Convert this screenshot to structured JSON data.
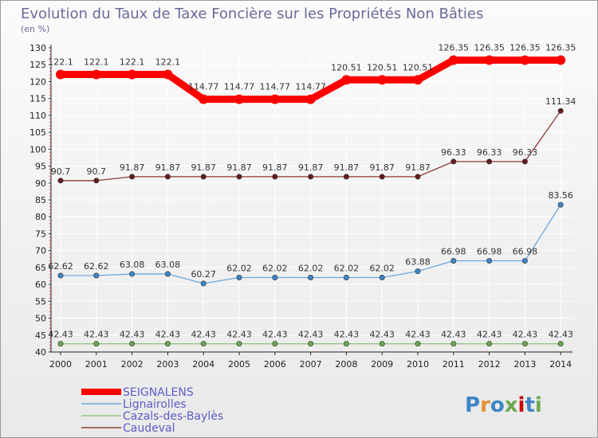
{
  "chart_data": {
    "type": "line",
    "title": "Evolution du Taux de Taxe Foncière sur les Propriétés Non Bâties",
    "unit_label": "(en %)",
    "xlabel": "",
    "ylabel": "",
    "categories": [
      "2000",
      "2001",
      "2002",
      "2003",
      "2004",
      "2005",
      "2006",
      "2007",
      "2008",
      "2009",
      "2010",
      "2011",
      "2012",
      "2013",
      "2014"
    ],
    "ylim": [
      40,
      130
    ],
    "yticks": [
      40,
      45,
      50,
      55,
      60,
      65,
      70,
      75,
      80,
      85,
      90,
      95,
      100,
      105,
      110,
      115,
      120,
      125,
      130
    ],
    "grid": true,
    "series": [
      {
        "name": "SEIGNALENS",
        "color": "#ff0000",
        "marker_color": "#ff0000",
        "values": [
          122.1,
          122.1,
          122.1,
          122.1,
          114.77,
          114.77,
          114.77,
          114.77,
          120.51,
          120.51,
          120.51,
          126.35,
          126.35,
          126.35,
          126.35
        ],
        "labels": [
          "122.1",
          "122.1",
          "122.1",
          "122.1",
          "114.77",
          "114.77",
          "114.77",
          "114.77",
          "120.51",
          "120.51",
          "120.51",
          "126.35",
          "126.35",
          "126.35",
          "126.35"
        ]
      },
      {
        "name": "Lignairolles",
        "color": "#6fa8dc",
        "marker_color": "#3d85c6",
        "values": [
          62.62,
          62.62,
          63.08,
          63.08,
          60.27,
          62.02,
          62.02,
          62.02,
          62.02,
          62.02,
          63.88,
          66.98,
          66.98,
          66.98,
          83.56
        ],
        "labels": [
          "62.62",
          "62.62",
          "63.08",
          "63.08",
          "60.27",
          "62.02",
          "62.02",
          "62.02",
          "62.02",
          "62.02",
          "63.88",
          "66.98",
          "66.98",
          "66.98",
          "83.56"
        ]
      },
      {
        "name": "Cazals-des-Baylès",
        "color": "#93c47d",
        "marker_color": "#6aa84f",
        "values": [
          42.43,
          42.43,
          42.43,
          42.43,
          42.43,
          42.43,
          42.43,
          42.43,
          42.43,
          42.43,
          42.43,
          42.43,
          42.43,
          42.43,
          42.43
        ],
        "labels": [
          "42.43",
          "42.43",
          "42.43",
          "42.43",
          "42.43",
          "42.43",
          "42.43",
          "42.43",
          "42.43",
          "42.43",
          "42.43",
          "42.43",
          "42.43",
          "42.43",
          "42.43"
        ]
      },
      {
        "name": "Caudeval",
        "color": "#8b3a3a",
        "marker_color": "#661c1c",
        "values": [
          90.7,
          90.7,
          91.87,
          91.87,
          91.87,
          91.87,
          91.87,
          91.87,
          91.87,
          91.87,
          91.87,
          96.33,
          96.33,
          96.33,
          111.34
        ],
        "labels": [
          "90.7",
          "90.7",
          "91.87",
          "91.87",
          "91.87",
          "91.87",
          "91.87",
          "91.87",
          "91.87",
          "91.87",
          "91.87",
          "96.33",
          "96.33",
          "96.33",
          "111.34"
        ]
      }
    ],
    "legend": {
      "position": "bottom-left",
      "entries": [
        "SEIGNALENS",
        "Lignairolles",
        "Cazals-des-Baylès",
        "Caudeval"
      ]
    }
  },
  "brand": {
    "text": "Proxiti",
    "letters": [
      "P",
      "r",
      "o",
      "x",
      "i",
      "t",
      "i"
    ],
    "colors": [
      "#3d85c6",
      "#e69138",
      "#3d85c6",
      "#6aa84f",
      "#cc0000",
      "#3d85c6",
      "#6aa84f"
    ]
  }
}
